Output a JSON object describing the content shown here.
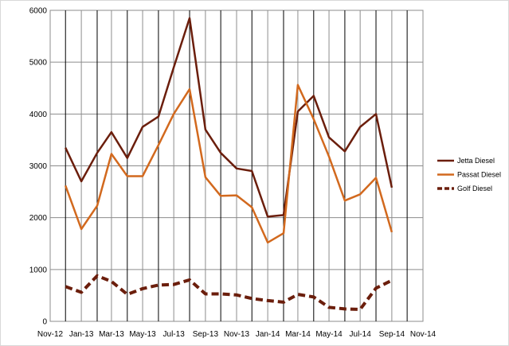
{
  "chart_data": {
    "type": "line",
    "x_ticks": [
      "Nov-12",
      "Jan-13",
      "Mar-13",
      "May-13",
      "Jul-13",
      "Sep-13",
      "Nov-13",
      "Jan-14",
      "Mar-14",
      "May-14",
      "Jul-14",
      "Sep-14",
      "Nov-14"
    ],
    "x": [
      "2012-12-15",
      "2013-01-15",
      "2013-02-15",
      "2013-03-15",
      "2013-04-15",
      "2013-05-15",
      "2013-06-15",
      "2013-07-15",
      "2013-08-15",
      "2013-09-15",
      "2013-10-15",
      "2013-11-15",
      "2013-12-15",
      "2014-01-15",
      "2014-02-15",
      "2014-03-15",
      "2014-04-15",
      "2014-05-15",
      "2014-06-15",
      "2014-07-15",
      "2014-08-15",
      "2014-09-15"
    ],
    "series": [
      {
        "name": "Jetta Diesel",
        "color": "#6b1e0c",
        "style": "solid",
        "values": [
          3350,
          2700,
          3250,
          3650,
          3150,
          3750,
          3950,
          4900,
          5850,
          3700,
          3250,
          2950,
          2900,
          2020,
          2050,
          4050,
          4350,
          3550,
          3280,
          3750,
          4000,
          2580
        ]
      },
      {
        "name": "Passat Diesel",
        "color": "#d2691e",
        "style": "solid",
        "values": [
          2620,
          1780,
          2230,
          3230,
          2800,
          2800,
          3400,
          4000,
          4480,
          2780,
          2420,
          2430,
          2200,
          1520,
          1700,
          4560,
          3900,
          3180,
          2330,
          2450,
          2770,
          1720
        ]
      },
      {
        "name": "Golf Diesel",
        "color": "#6b1e0c",
        "style": "dashed",
        "values": [
          670,
          560,
          880,
          770,
          520,
          630,
          700,
          710,
          800,
          530,
          530,
          510,
          440,
          400,
          370,
          520,
          470,
          270,
          240,
          230,
          640,
          790
        ]
      }
    ],
    "y_ticks": [
      "0",
      "1000",
      "2000",
      "3000",
      "4000",
      "5000",
      "6000"
    ],
    "ylim": [
      0,
      6000
    ],
    "xlim": [
      "2012-11-15",
      "2014-11-15"
    ],
    "grid": true,
    "legend_position": "right"
  }
}
